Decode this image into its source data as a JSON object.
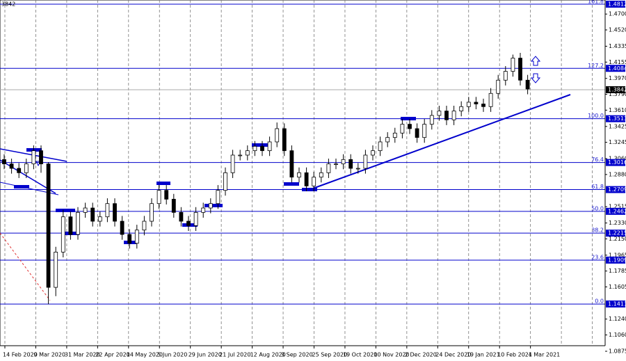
{
  "chart_data": {
    "type": "candlestick",
    "corner_label": "3842",
    "ylim": [
      1.0875,
      1.4812
    ],
    "yticks": [
      {
        "value": 1.47,
        "label": "1.4700"
      },
      {
        "value": 1.452,
        "label": "1.4520"
      },
      {
        "value": 1.4335,
        "label": "1.4335"
      },
      {
        "value": 1.4155,
        "label": "1.4155"
      },
      {
        "value": 1.397,
        "label": "1.3970"
      },
      {
        "value": 1.379,
        "label": "1.3790"
      },
      {
        "value": 1.361,
        "label": "1.3610"
      },
      {
        "value": 1.3425,
        "label": "1.3425"
      },
      {
        "value": 1.3245,
        "label": "1.3245"
      },
      {
        "value": 1.306,
        "label": "1.3060"
      },
      {
        "value": 1.288,
        "label": "1.2880"
      },
      {
        "value": 1.2515,
        "label": "1.2515"
      },
      {
        "value": 1.233,
        "label": "1.2330"
      },
      {
        "value": 1.215,
        "label": "1.2150"
      },
      {
        "value": 1.1965,
        "label": "1.1965"
      },
      {
        "value": 1.1785,
        "label": "1.1785"
      },
      {
        "value": 1.1605,
        "label": "1.1605"
      },
      {
        "value": 1.124,
        "label": "1.1240"
      },
      {
        "value": 1.106,
        "label": "1.1060"
      },
      {
        "value": 1.0875,
        "label": "1.0875"
      }
    ],
    "levels": [
      {
        "name": "161.8",
        "value": 1.4812,
        "label": "1.4812"
      },
      {
        "name": "127.2",
        "value": 1.4084,
        "label": "1.4084"
      },
      {
        "name": "100.0",
        "value": 1.3513,
        "label": "1.3513"
      },
      {
        "name": "76.4",
        "value": 1.3016,
        "label": "1.3016"
      },
      {
        "name": "61.8",
        "value": 1.2709,
        "label": "1.2709"
      },
      {
        "name": "50.0",
        "value": 1.2462,
        "label": "1.2462"
      },
      {
        "name": "38.2",
        "value": 1.2215,
        "label": "1.2215"
      },
      {
        "name": "23.6",
        "value": 1.1909,
        "label": "1.1909"
      },
      {
        "name": "0.0",
        "value": 1.1411,
        "label": "1.1411"
      }
    ],
    "current_price": {
      "value": 1.3842,
      "label": "1.3842"
    },
    "x_labels": [
      "14 Feb 2020",
      "9 Mar 2020",
      "31 Mar 2020",
      "22 Apr 2020",
      "14 May 2020",
      "5 Jun 2020",
      "29 Jun 2020",
      "21 Jul 2020",
      "12 Aug 2020",
      "3 Sep 2020",
      "25 Sep 2020",
      "19 Oct 2020",
      "10 Nov 2020",
      "2 Dec 2020",
      "24 Dec 2020",
      "19 Jan 2021",
      "10 Feb 2021",
      "4 Mar 2021"
    ],
    "grid": true,
    "line_color": "#0000cc",
    "open": [
      1.305,
      1.3,
      1.295,
      1.29,
      1.3,
      1.315,
      1.3,
      1.16,
      1.2,
      1.24,
      1.22,
      1.245,
      1.25,
      1.235,
      1.24,
      1.255,
      1.235,
      1.22,
      1.21,
      1.225,
      1.235,
      1.255,
      1.27,
      1.26,
      1.245,
      1.235,
      1.23,
      1.245,
      1.25,
      1.255,
      1.27,
      1.29,
      1.31,
      1.31,
      1.315,
      1.32,
      1.315,
      1.325,
      1.34,
      1.315,
      1.285,
      1.29,
      1.275,
      1.285,
      1.29,
      1.3,
      1.3,
      1.305,
      1.295,
      1.295,
      1.31,
      1.315,
      1.325,
      1.33,
      1.335,
      1.345,
      1.34,
      1.33,
      1.345,
      1.355,
      1.36,
      1.35,
      1.36,
      1.365,
      1.37,
      1.368,
      1.365,
      1.38,
      1.395,
      1.405,
      1.42,
      1.395
    ],
    "high": [
      1.311,
      1.306,
      1.301,
      1.306,
      1.321,
      1.321,
      1.302,
      1.206,
      1.248,
      1.246,
      1.251,
      1.256,
      1.256,
      1.246,
      1.261,
      1.261,
      1.241,
      1.226,
      1.231,
      1.241,
      1.261,
      1.276,
      1.276,
      1.266,
      1.251,
      1.241,
      1.251,
      1.256,
      1.261,
      1.276,
      1.296,
      1.316,
      1.316,
      1.321,
      1.326,
      1.326,
      1.331,
      1.347,
      1.346,
      1.321,
      1.296,
      1.296,
      1.291,
      1.296,
      1.306,
      1.306,
      1.311,
      1.311,
      1.301,
      1.316,
      1.321,
      1.331,
      1.336,
      1.341,
      1.351,
      1.351,
      1.346,
      1.351,
      1.361,
      1.366,
      1.366,
      1.366,
      1.371,
      1.376,
      1.376,
      1.374,
      1.386,
      1.401,
      1.411,
      1.424,
      1.426,
      1.401
    ],
    "low": [
      1.294,
      1.289,
      1.284,
      1.284,
      1.294,
      1.29,
      1.141,
      1.15,
      1.194,
      1.214,
      1.214,
      1.239,
      1.229,
      1.229,
      1.234,
      1.229,
      1.214,
      1.204,
      1.204,
      1.219,
      1.229,
      1.249,
      1.254,
      1.239,
      1.229,
      1.224,
      1.224,
      1.239,
      1.244,
      1.249,
      1.264,
      1.284,
      1.304,
      1.304,
      1.309,
      1.309,
      1.309,
      1.319,
      1.309,
      1.279,
      1.279,
      1.269,
      1.269,
      1.279,
      1.284,
      1.294,
      1.294,
      1.289,
      1.289,
      1.289,
      1.304,
      1.309,
      1.319,
      1.324,
      1.329,
      1.334,
      1.324,
      1.324,
      1.339,
      1.349,
      1.344,
      1.344,
      1.354,
      1.359,
      1.362,
      1.359,
      1.359,
      1.374,
      1.389,
      1.399,
      1.389,
      1.379
    ],
    "close": [
      1.3,
      1.295,
      1.29,
      1.3,
      1.315,
      1.3,
      1.16,
      1.2,
      1.24,
      1.22,
      1.245,
      1.25,
      1.235,
      1.24,
      1.255,
      1.235,
      1.22,
      1.21,
      1.225,
      1.235,
      1.255,
      1.27,
      1.26,
      1.245,
      1.235,
      1.23,
      1.245,
      1.25,
      1.255,
      1.27,
      1.29,
      1.31,
      1.31,
      1.315,
      1.32,
      1.315,
      1.325,
      1.34,
      1.315,
      1.285,
      1.29,
      1.275,
      1.285,
      1.29,
      1.3,
      1.3,
      1.305,
      1.295,
      1.295,
      1.31,
      1.315,
      1.325,
      1.33,
      1.335,
      1.345,
      1.34,
      1.33,
      1.345,
      1.355,
      1.36,
      1.35,
      1.36,
      1.365,
      1.37,
      1.368,
      1.365,
      1.38,
      1.395,
      1.405,
      1.42,
      1.395,
      1.385
    ]
  }
}
